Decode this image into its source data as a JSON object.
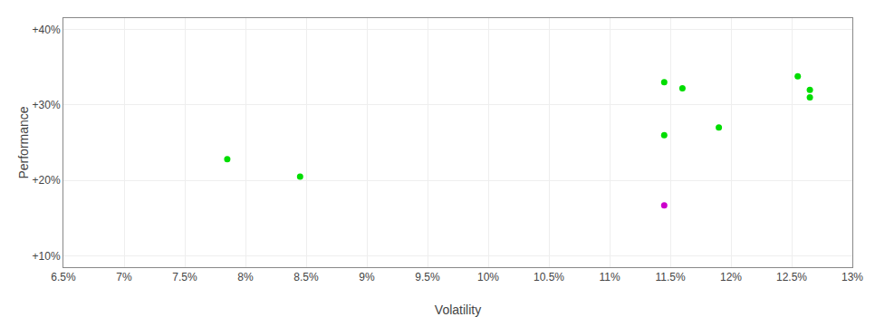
{
  "chart_data": {
    "type": "scatter",
    "xlabel": "Volatility",
    "ylabel": "Performance",
    "x": [
      0.0785,
      0.0845,
      0.1145,
      0.119,
      0.1145,
      0.116,
      0.1255,
      0.1265,
      0.1265,
      0.1145
    ],
    "values": [
      0.228,
      0.205,
      0.26,
      0.27,
      0.33,
      0.322,
      0.338,
      0.32,
      0.31,
      0.167
    ],
    "colors": [
      "#00dd00",
      "#00dd00",
      "#00dd00",
      "#00dd00",
      "#00dd00",
      "#00dd00",
      "#00dd00",
      "#00dd00",
      "#00dd00",
      "#cc00cc"
    ],
    "xlim": [
      0.065,
      0.13
    ],
    "xticks": [
      {
        "value": 0.065,
        "label": "6.5%"
      },
      {
        "value": 0.07,
        "label": "7%"
      },
      {
        "value": 0.075,
        "label": "7.5%"
      },
      {
        "value": 0.08,
        "label": "8%"
      },
      {
        "value": 0.085,
        "label": "8.5%"
      },
      {
        "value": 0.09,
        "label": "9%"
      },
      {
        "value": 0.095,
        "label": "9.5%"
      },
      {
        "value": 0.1,
        "label": "10%"
      },
      {
        "value": 0.105,
        "label": "10.5%"
      },
      {
        "value": 0.11,
        "label": "11%"
      },
      {
        "value": 0.115,
        "label": "11.5%"
      },
      {
        "value": 0.12,
        "label": "12%"
      },
      {
        "value": 0.125,
        "label": "12.5%"
      },
      {
        "value": 0.13,
        "label": "13%"
      }
    ],
    "ylim": [
      0.085,
      0.415
    ],
    "yticks": [
      {
        "value": 0.1,
        "label": "+10%"
      },
      {
        "value": 0.2,
        "label": "+20%"
      },
      {
        "value": 0.3,
        "label": "+30%"
      },
      {
        "value": 0.4,
        "label": "+40%"
      }
    ],
    "grid": true
  }
}
